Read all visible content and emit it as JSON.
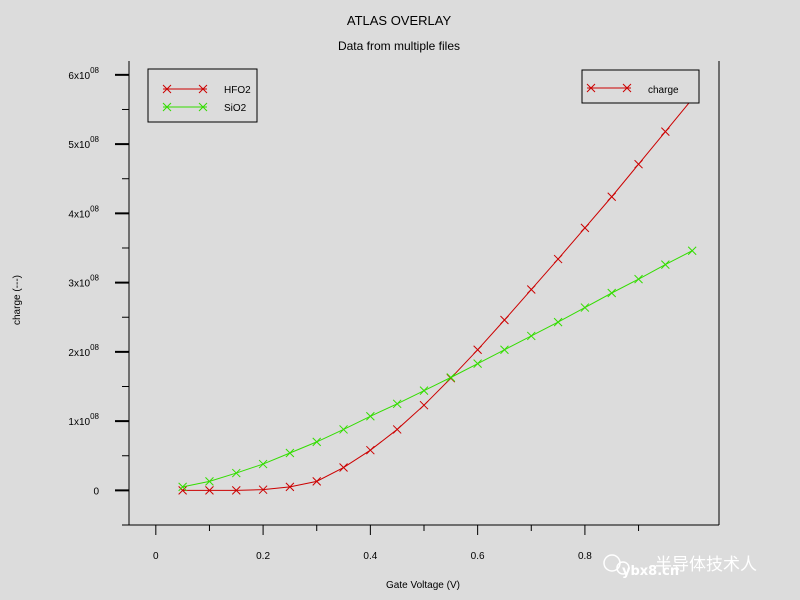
{
  "chart_data": {
    "type": "line",
    "title": "ATLAS OVERLAY",
    "subtitle": "Data from multiple files",
    "xlabel": "Gate Voltage (V)",
    "ylabel": "charge (---)",
    "xlim": [
      -0.05,
      1.05
    ],
    "ylim": [
      -50000000.0,
      620000000.0
    ],
    "x_ticks": [
      0,
      0.2,
      0.4,
      0.6,
      0.8
    ],
    "x_tick_labels": [
      "0",
      "0.2",
      "0.4",
      "0.6",
      "0.8"
    ],
    "y_ticks": [
      0,
      100000000.0,
      200000000.0,
      300000000.0,
      400000000.0,
      500000000.0,
      600000000.0
    ],
    "y_tick_labels": [
      {
        "base": "0",
        "exp": ""
      },
      {
        "base": "1x10",
        "exp": "08"
      },
      {
        "base": "2x10",
        "exp": "08"
      },
      {
        "base": "3x10",
        "exp": "08"
      },
      {
        "base": "4x10",
        "exp": "08"
      },
      {
        "base": "5x10",
        "exp": "08"
      },
      {
        "base": "6x10",
        "exp": "08"
      }
    ],
    "grid": false,
    "series": [
      {
        "name": "HFO2",
        "color": "#cc0000",
        "marker": "x",
        "x": [
          0.05,
          0.1,
          0.15,
          0.2,
          0.25,
          0.3,
          0.35,
          0.4,
          0.45,
          0.5,
          0.55,
          0.6,
          0.65,
          0.7,
          0.75,
          0.8,
          0.85,
          0.9,
          0.95,
          1.0
        ],
        "y": [
          0,
          0,
          0,
          1000000,
          5000000,
          13000000,
          33000000,
          58000000,
          88000000,
          123000000,
          162000000,
          203000000,
          246000000,
          290000000,
          334000000,
          379000000,
          424000000,
          471000000,
          518000000,
          565000000
        ]
      },
      {
        "name": "SiO2",
        "color": "#33dd00",
        "marker": "x",
        "x": [
          0.05,
          0.1,
          0.15,
          0.2,
          0.25,
          0.3,
          0.35,
          0.4,
          0.45,
          0.5,
          0.55,
          0.6,
          0.65,
          0.7,
          0.75,
          0.8,
          0.85,
          0.9,
          0.95,
          1.0
        ],
        "y": [
          5000000,
          13000000,
          25000000,
          38000000,
          54000000,
          70000000,
          88000000,
          107000000,
          125000000,
          144000000,
          163000000,
          183000000,
          203000000,
          223000000,
          243000000,
          264000000,
          285000000,
          305000000,
          326000000,
          346000000
        ]
      }
    ],
    "legends": [
      {
        "position": "top-left",
        "entries": [
          "HFO2",
          "SiO2"
        ]
      },
      {
        "position": "top-right",
        "entries": [
          "charge"
        ]
      }
    ]
  },
  "watermark": {
    "site": "ybx8.cn",
    "name": "半导体技术人"
  },
  "colors": {
    "background": "#dcdcdc",
    "axis": "#000000"
  }
}
